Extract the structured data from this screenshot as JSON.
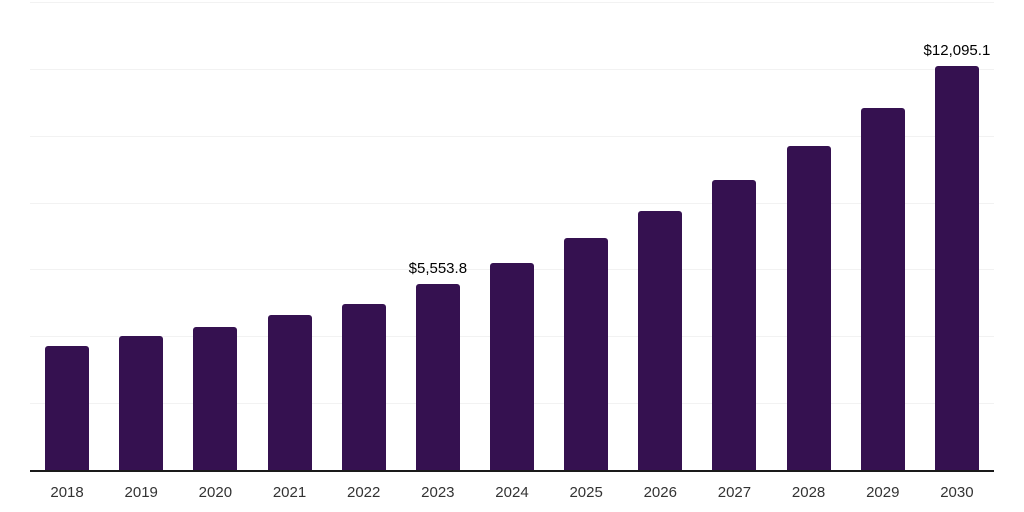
{
  "chart_data": {
    "type": "bar",
    "title": "",
    "xlabel": "",
    "ylabel": "",
    "categories": [
      "2018",
      "2019",
      "2020",
      "2021",
      "2022",
      "2023",
      "2024",
      "2025",
      "2026",
      "2027",
      "2028",
      "2029",
      "2030"
    ],
    "values": [
      3700.0,
      3995.0,
      4275.0,
      4630.0,
      4970.0,
      5553.8,
      6207.0,
      6937.0,
      7753.0,
      8665.0,
      9684.0,
      10823.0,
      12095.1
    ],
    "data_labels": [
      null,
      null,
      null,
      null,
      null,
      "$5,553.8",
      null,
      null,
      null,
      null,
      null,
      null,
      "$12,095.1"
    ],
    "ylim": [
      0,
      14000
    ],
    "gridlines": {
      "axis": "y",
      "step": 2000,
      "visible": true
    },
    "y_axis_tick_labels": "none",
    "legend_position": "none",
    "colors": {
      "bar": "#351150",
      "gridline": "#f2f2f2",
      "axis_line": "#1a1a1a",
      "tick_text": "#333333",
      "data_label_text": "#000000",
      "background": "#ffffff"
    }
  }
}
